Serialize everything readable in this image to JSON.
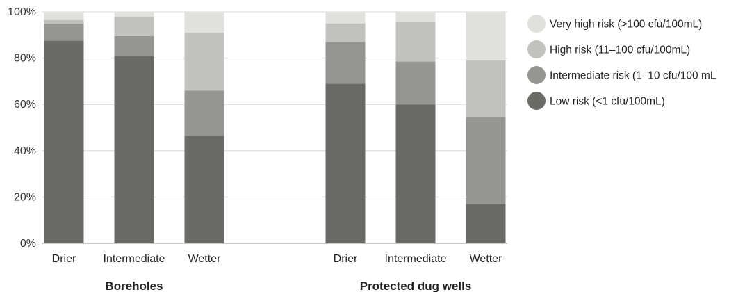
{
  "chart_data": {
    "type": "bar",
    "stacked": true,
    "normalized_percent": true,
    "ylim": [
      0,
      100
    ],
    "yticks": [
      0,
      20,
      40,
      60,
      80,
      100
    ],
    "ytick_labels": [
      "0%",
      "20%",
      "40%",
      "60%",
      "80%",
      "100%"
    ],
    "grid": true,
    "legend_position": "right",
    "groups": [
      {
        "label": "Boreholes",
        "categories": [
          "Drier",
          "Intermediate",
          "Wetter"
        ],
        "series": [
          {
            "name": "Low risk (<1 cfu/100mL)",
            "values": [
              87.5,
              81,
              46.5
            ]
          },
          {
            "name": "Intermediate risk  (1–10 cfu/100 mL",
            "values": [
              7.5,
              8.5,
              19.5
            ]
          },
          {
            "name": "High risk (11–100 cfu/100mL)",
            "values": [
              1.5,
              8.5,
              25
            ]
          },
          {
            "name": "Very high risk (>100 cfu/100mL)",
            "values": [
              3.5,
              2,
              9
            ]
          }
        ]
      },
      {
        "label": "Protected dug wells",
        "categories": [
          "Drier",
          "Intermediate",
          "Wetter"
        ],
        "series": [
          {
            "name": "Low risk (<1 cfu/100mL)",
            "values": [
              69,
              60,
              17
            ]
          },
          {
            "name": "Intermediate risk  (1–10 cfu/100 mL",
            "values": [
              18,
              18.5,
              37.5
            ]
          },
          {
            "name": "High risk (11–100 cfu/100mL)",
            "values": [
              8,
              17,
              24.5
            ]
          },
          {
            "name": "Very high risk (>100 cfu/100mL)",
            "values": [
              5,
              4.5,
              21
            ]
          }
        ]
      }
    ],
    "legend": [
      {
        "name": "Very high risk (>100 cfu/100mL)",
        "color": "#e0e0dc"
      },
      {
        "name": "High risk (11–100 cfu/100mL)",
        "color": "#c1c1bd"
      },
      {
        "name": "Intermediate risk  (1–10 cfu/100 mL",
        "color": "#959592"
      },
      {
        "name": "Low risk (<1 cfu/100mL)",
        "color": "#6a6a66"
      }
    ],
    "colors": {
      "Low risk (<1 cfu/100mL)": "#6a6a66",
      "Intermediate risk  (1–10 cfu/100 mL": "#959592",
      "High risk (11–100 cfu/100mL)": "#c1c1bd",
      "Very high risk (>100 cfu/100mL)": "#e0e0dc"
    }
  }
}
